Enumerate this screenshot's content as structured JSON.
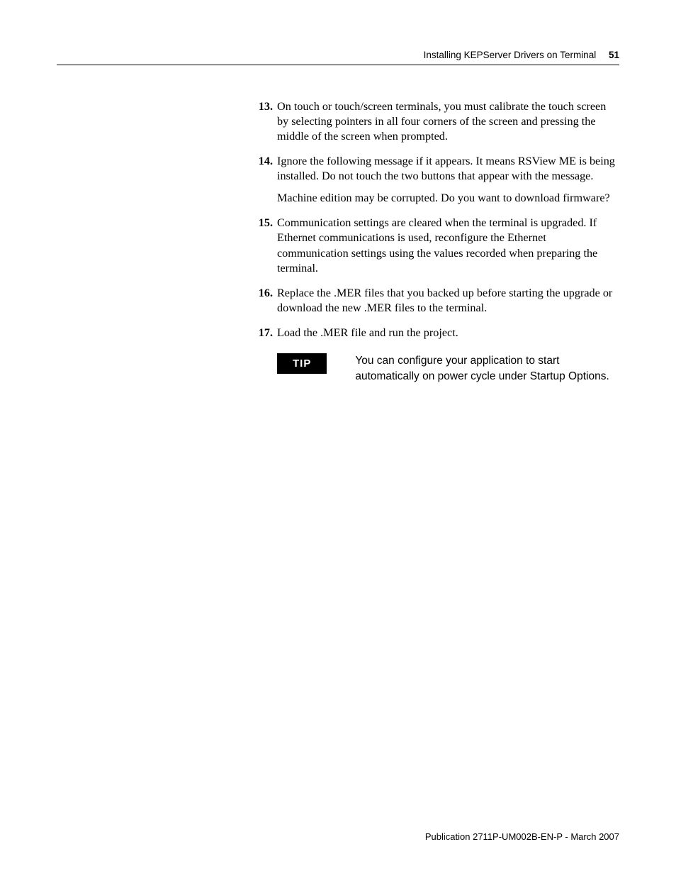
{
  "header": {
    "title": "Installing KEPServer Drivers on Terminal",
    "page_number": "51"
  },
  "steps": [
    {
      "num": "13.",
      "paragraphs": [
        "On touch or touch/screen terminals, you must calibrate the touch screen by selecting pointers in all four corners of the screen and pressing the middle of the screen when prompted."
      ]
    },
    {
      "num": "14.",
      "paragraphs": [
        "Ignore the following message if it appears. It means RSView ME is being installed. Do not touch the two buttons that appear with the message.",
        "Machine edition may be corrupted. Do you want to download firmware?"
      ]
    },
    {
      "num": "15.",
      "paragraphs": [
        "Communication settings are cleared when the terminal is upgraded. If Ethernet communications is used, reconfigure the Ethernet communication settings using the values recorded when preparing the terminal."
      ]
    },
    {
      "num": "16.",
      "paragraphs": [
        "Replace the .MER files that you backed up before starting the upgrade or download the new .MER files to the terminal."
      ]
    },
    {
      "num": "17.",
      "paragraphs": [
        "Load the .MER file and run the project."
      ]
    }
  ],
  "tip": {
    "label": "TIP",
    "text": "You can configure your application to start automatically on power cycle under Startup Options."
  },
  "footer": {
    "text": "Publication 2711P-UM002B-EN-P - March 2007"
  },
  "colors": {
    "text": "#000000",
    "background": "#ffffff",
    "rule": "#000000",
    "tip_bg": "#000000",
    "tip_fg": "#ffffff"
  }
}
